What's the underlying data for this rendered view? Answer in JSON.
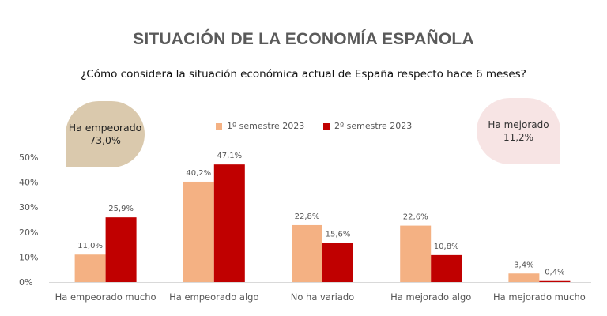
{
  "title": "SITUACIÓN DE LA ECONOMÍA ESPAÑOLA",
  "subtitle": "¿Cómo considera la situación económica actual de España respecto hace 6 meses?",
  "callouts": {
    "left": {
      "label": "Ha empeorado",
      "value": "73,0%"
    },
    "right": {
      "label": "Ha mejorado",
      "value": "11,2%"
    }
  },
  "colors": {
    "series1": "#f4b183",
    "series2": "#c00000",
    "axis": "#d9d9d9",
    "callout_left": "#dac9ad",
    "callout_right": "#f7e4e4"
  },
  "chart_data": {
    "type": "bar",
    "title": "SITUACIÓN DE LA ECONOMÍA ESPAÑOLA",
    "subtitle": "¿Cómo considera la situación económica actual de España respecto hace 6 meses?",
    "categories": [
      "Ha empeorado mucho",
      "Ha empeorado algo",
      "No ha variado",
      "Ha mejorado algo",
      "Ha mejorado mucho"
    ],
    "series": [
      {
        "name": "1º semestre 2023",
        "values": [
          11.0,
          40.2,
          22.8,
          22.6,
          3.4
        ],
        "labels": [
          "11,0%",
          "40,2%",
          "22,8%",
          "22,6%",
          "3,4%"
        ]
      },
      {
        "name": "2º semestre 2023",
        "values": [
          25.9,
          47.1,
          15.6,
          10.8,
          0.4
        ],
        "labels": [
          "25,9%",
          "47,1%",
          "15,6%",
          "10,8%",
          "0,4%"
        ]
      }
    ],
    "ylim": [
      0,
      50
    ],
    "yticks": [
      "0%",
      "10%",
      "20%",
      "30%",
      "40%",
      "50%"
    ],
    "ytick_values": [
      0,
      10,
      20,
      30,
      40,
      50
    ],
    "grid": false,
    "legend": "top-center"
  }
}
